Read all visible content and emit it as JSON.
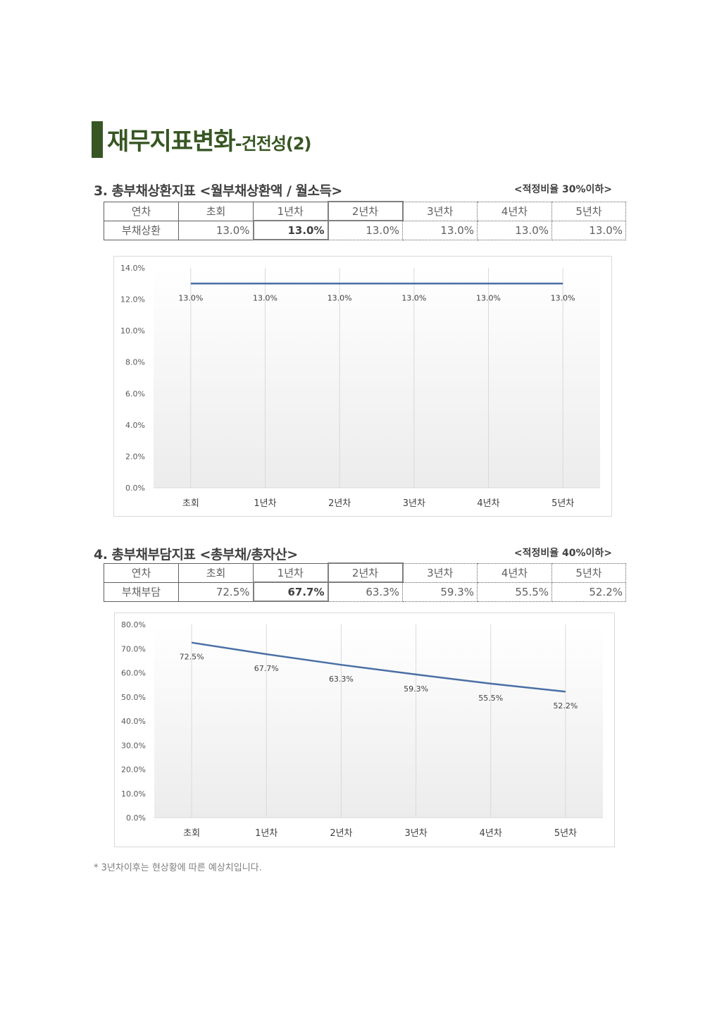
{
  "page_title": {
    "main": "재무지표변화",
    "sub": "-건전성(2)"
  },
  "sections": [
    {
      "title": "3. 총부채상환지표 <월부채상환액 / 월소득>",
      "note": "<적정비율 30%이하>",
      "table": {
        "header": [
          "연차",
          "초회",
          "1년차",
          "2년차",
          "3년차",
          "4년차",
          "5년차"
        ],
        "row": [
          "부채상환",
          "13.0%",
          "13.0%",
          "13.0%",
          "13.0%",
          "13.0%",
          "13.0%"
        ]
      }
    },
    {
      "title": "4. 총부채부담지표 <총부채/총자산>",
      "note": "<적정비율 40%이하>",
      "table": {
        "header": [
          "연차",
          "초회",
          "1년차",
          "2년차",
          "3년차",
          "4년차",
          "5년차"
        ],
        "row": [
          "부채부담",
          "72.5%",
          "67.7%",
          "63.3%",
          "59.3%",
          "55.5%",
          "52.2%"
        ]
      }
    }
  ],
  "chart_data": [
    {
      "type": "line",
      "categories": [
        "초회",
        "1년차",
        "2년차",
        "3년차",
        "4년차",
        "5년차"
      ],
      "series": [
        {
          "values": [
            13.0,
            13.0,
            13.0,
            13.0,
            13.0,
            13.0
          ]
        }
      ],
      "data_labels": [
        "13.0%",
        "13.0%",
        "13.0%",
        "13.0%",
        "13.0%",
        "13.0%"
      ],
      "y_ticks": [
        "0.0%",
        "2.0%",
        "4.0%",
        "6.0%",
        "8.0%",
        "10.0%",
        "12.0%",
        "14.0%"
      ],
      "ylim": [
        0,
        14
      ],
      "line_color": "#4a6fa5",
      "grid": "vertical"
    },
    {
      "type": "line",
      "categories": [
        "초회",
        "1년차",
        "2년차",
        "3년차",
        "4년차",
        "5년차"
      ],
      "series": [
        {
          "values": [
            72.5,
            67.7,
            63.3,
            59.3,
            55.5,
            52.2
          ]
        }
      ],
      "data_labels": [
        "72.5%",
        "67.7%",
        "63.3%",
        "59.3%",
        "55.5%",
        "52.2%"
      ],
      "y_ticks": [
        "0.0%",
        "10.0%",
        "20.0%",
        "30.0%",
        "40.0%",
        "50.0%",
        "60.0%",
        "70.0%",
        "80.0%"
      ],
      "ylim": [
        0,
        80
      ],
      "line_color": "#4a6fa5",
      "grid": "vertical"
    }
  ],
  "footnote": "* 3년차이후는 현상황에 따른 예상치입니다."
}
